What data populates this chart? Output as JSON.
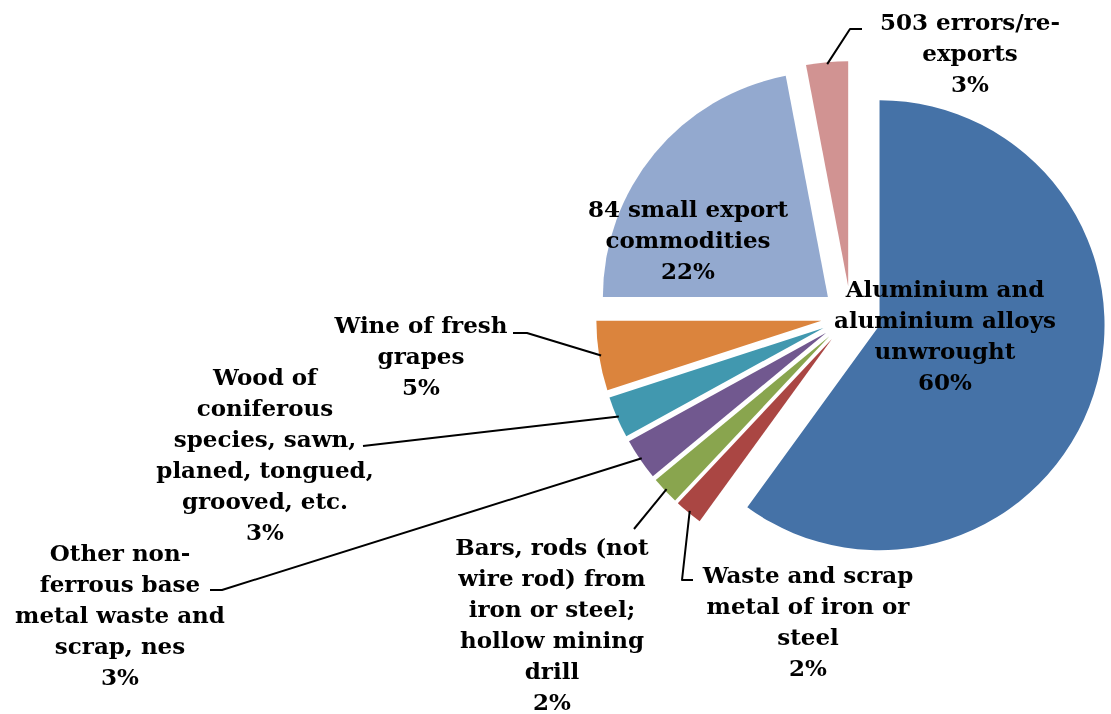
{
  "chart_data": {
    "type": "pie",
    "categories": [
      "Aluminium and aluminium alloys unwrought",
      "Waste and scrap metal of iron or steel",
      "Bars, rods (not wire rod) from iron or steel; hollow mining drill",
      "Other non-ferrous base metal waste and scrap, nes",
      "Wood of coniferous species, sawn, planed, tongued, grooved, etc.",
      "Wine of fresh grapes",
      "84 small export commodities",
      "503 errors/re-exports"
    ],
    "values": [
      60,
      2,
      2,
      3,
      3,
      5,
      22,
      3
    ],
    "colors": [
      "#4572a7",
      "#aa4643",
      "#89a54e",
      "#71588f",
      "#4198af",
      "#db843d",
      "#93a9cf",
      "#d19392"
    ],
    "value_labels": [
      "60%",
      "2%",
      "2%",
      "3%",
      "3%",
      "5%",
      "22%",
      "3%"
    ]
  }
}
